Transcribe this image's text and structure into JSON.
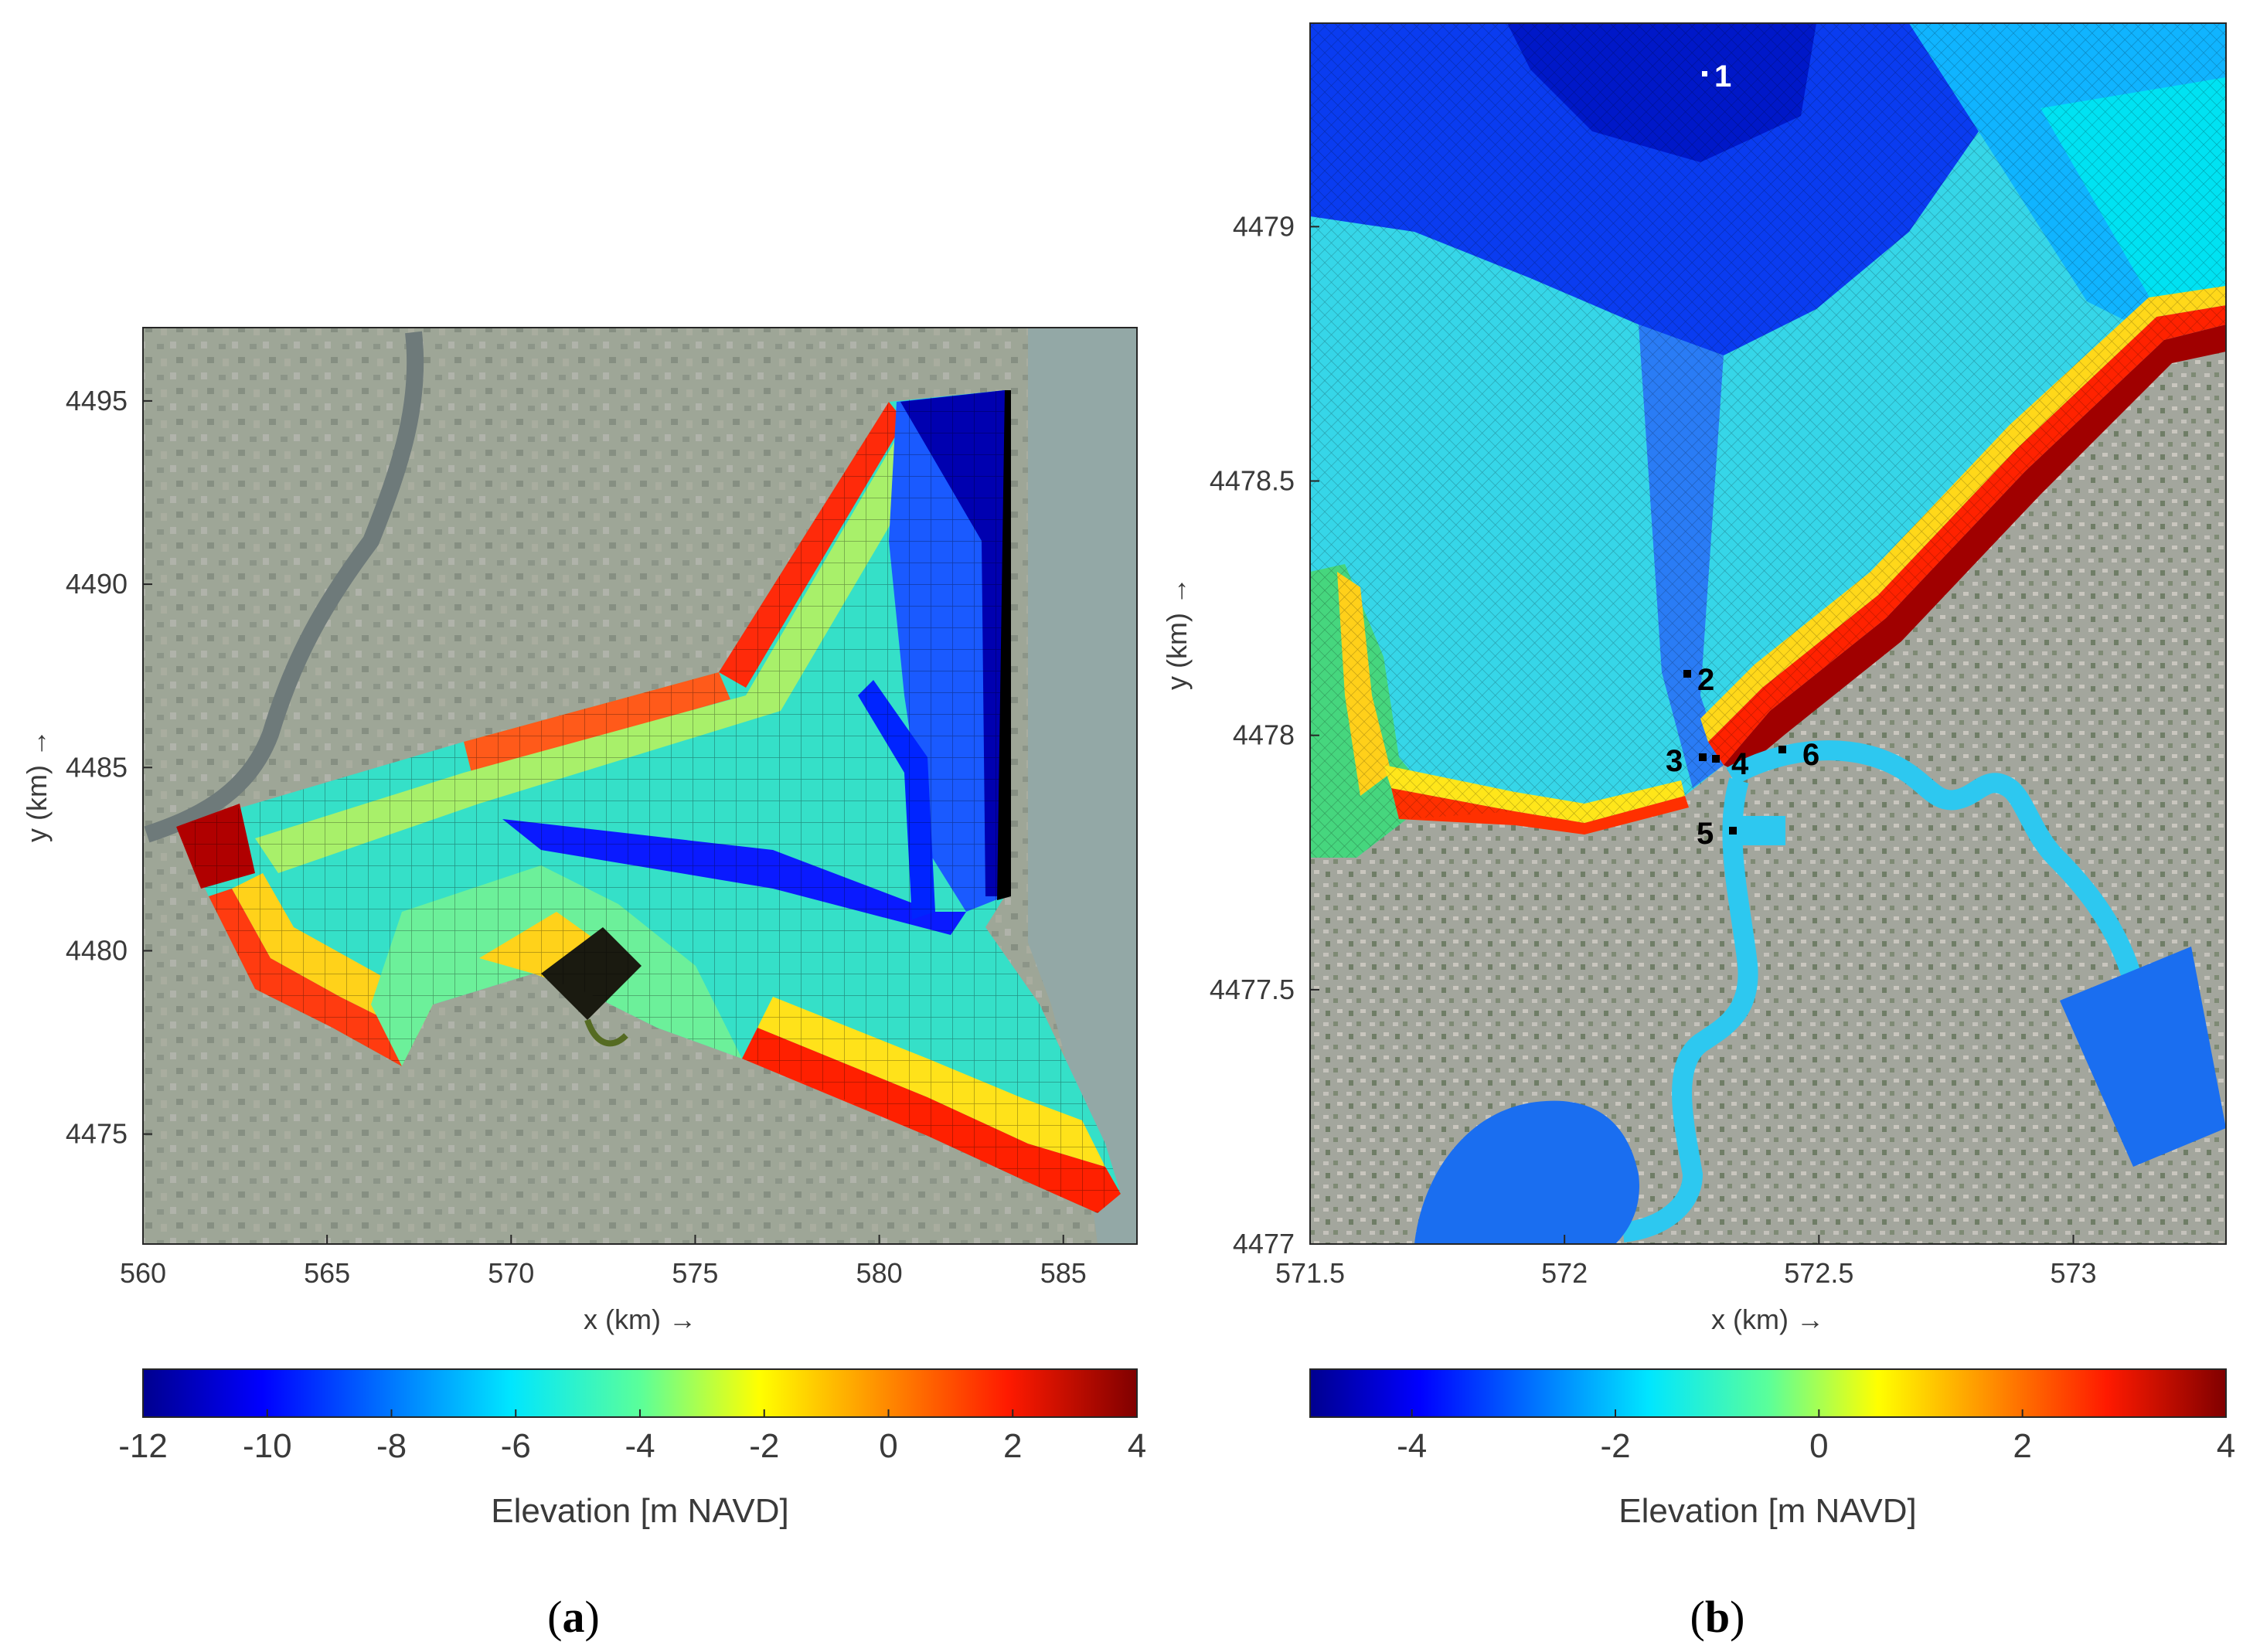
{
  "figure": {
    "panels": [
      {
        "id": "a",
        "caption_letter": "a",
        "caption_open": "(",
        "caption_close": ")",
        "xlabel": "x (km) →",
        "ylabel": "y (km) →",
        "x_ticks": [
          "560",
          "565",
          "570",
          "575",
          "580",
          "585"
        ],
        "y_ticks": [
          "4475",
          "4480",
          "4485",
          "4490",
          "4495"
        ],
        "xlim": [
          560,
          587
        ],
        "ylim": [
          4472,
          4497
        ],
        "colorbar": {
          "label": "Elevation [m NAVD]",
          "ticks": [
            "-12",
            "-10",
            "-8",
            "-6",
            "-4",
            "-2",
            "0",
            "2",
            "4"
          ],
          "range": [
            -12,
            4
          ],
          "colormap": "jet"
        }
      },
      {
        "id": "b",
        "caption_letter": "b",
        "caption_open": "(",
        "caption_close": ")",
        "xlabel": "x (km) →",
        "ylabel": "y (km) →",
        "x_ticks": [
          "571.5",
          "572",
          "572.5",
          "573"
        ],
        "y_ticks": [
          "4477",
          "4477.5",
          "4478",
          "4478.5",
          "4479"
        ],
        "xlim": [
          571.5,
          573.3
        ],
        "ylim": [
          4477,
          4479.4
        ],
        "station_labels": [
          "1",
          "2",
          "3",
          "4",
          "5",
          "6"
        ],
        "colorbar": {
          "label": "Elevation [m NAVD]",
          "ticks": [
            "-4",
            "-2",
            "0",
            "2",
            "4"
          ],
          "range": [
            -5,
            4
          ],
          "colormap": "jet"
        }
      }
    ],
    "colors": {
      "deep": "#00008f",
      "blue": "#0050ff",
      "cyan": "#00e6ff",
      "green": "#5aff9a",
      "yellow": "#ffe600",
      "red": "#ff1a00",
      "darkred": "#800000",
      "aerial": "#9aa494"
    }
  }
}
